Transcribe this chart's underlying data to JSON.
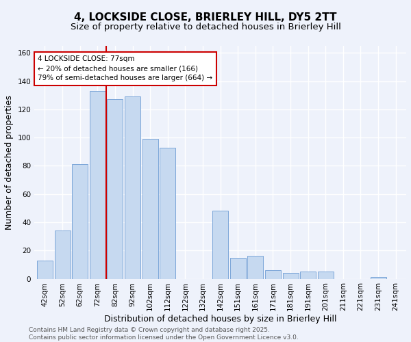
{
  "title1": "4, LOCKSIDE CLOSE, BRIERLEY HILL, DY5 2TT",
  "title2": "Size of property relative to detached houses in Brierley Hill",
  "xlabel": "Distribution of detached houses by size in Brierley Hill",
  "ylabel": "Number of detached properties",
  "categories": [
    "42sqm",
    "52sqm",
    "62sqm",
    "72sqm",
    "82sqm",
    "92sqm",
    "102sqm",
    "112sqm",
    "122sqm",
    "132sqm",
    "142sqm",
    "151sqm",
    "161sqm",
    "171sqm",
    "181sqm",
    "191sqm",
    "201sqm",
    "211sqm",
    "221sqm",
    "231sqm",
    "241sqm"
  ],
  "values": [
    13,
    34,
    81,
    133,
    127,
    129,
    99,
    93,
    0,
    0,
    48,
    15,
    16,
    6,
    4,
    5,
    5,
    0,
    0,
    1,
    0
  ],
  "bar_color": "#c6d9f0",
  "bar_edge_color": "#7da7d9",
  "vline_x": 3.5,
  "vline_color": "#cc0000",
  "annotation_text": "4 LOCKSIDE CLOSE: 77sqm\n← 20% of detached houses are smaller (166)\n79% of semi-detached houses are larger (664) →",
  "annotation_box_color": "#ffffff",
  "annotation_box_edge": "#cc0000",
  "ylim": [
    0,
    165
  ],
  "yticks": [
    0,
    20,
    40,
    60,
    80,
    100,
    120,
    140,
    160
  ],
  "footer": "Contains HM Land Registry data © Crown copyright and database right 2025.\nContains public sector information licensed under the Open Government Licence v3.0.",
  "bg_color": "#eef2fb",
  "grid_color": "#ffffff",
  "title_fontsize": 11,
  "subtitle_fontsize": 9.5,
  "axis_label_fontsize": 9,
  "tick_fontsize": 7.5,
  "footer_fontsize": 6.5,
  "annotation_fontsize": 7.5
}
